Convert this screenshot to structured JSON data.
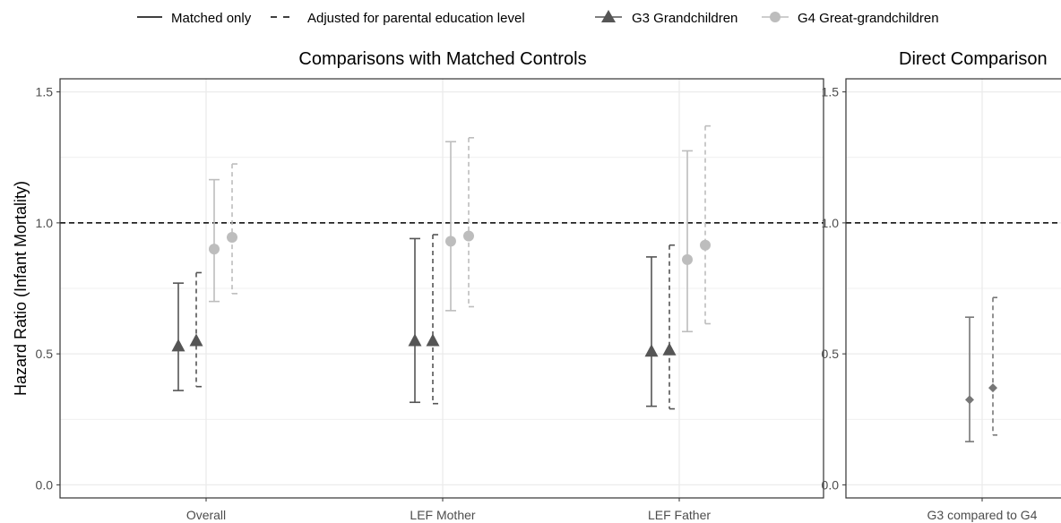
{
  "legend": {
    "linetype": [
      {
        "label": "Matched only",
        "style": "solid"
      },
      {
        "label": "Adjusted for parental education level",
        "style": "dashed"
      }
    ],
    "generation": [
      {
        "label": "G3 Grandchildren",
        "shape": "triangle",
        "color": "#555555"
      },
      {
        "label": "G4 Great-grandchildren",
        "shape": "circle",
        "color": "#bdbdbd"
      }
    ]
  },
  "y_axis_label": "Hazard Ratio (Infant Mortality)",
  "colors": {
    "g3": "#555555",
    "g4": "#bdbdbd",
    "direct": "#777777",
    "reference_line": "#000000",
    "grid": "#ebebeb",
    "panel_border": "#333333"
  },
  "chart_data": [
    {
      "type": "scatter",
      "subtype": "point-range with error bars",
      "title": "Comparisons with Matched Controls",
      "xlabel": "",
      "ylabel": "Hazard Ratio (Infant Mortality)",
      "ylim": [
        -0.05,
        1.55
      ],
      "yticks": [
        "0.0",
        "0.5",
        "1.0",
        "1.5"
      ],
      "reference_line": 1.0,
      "grid": true,
      "categories": [
        "Overall",
        "LEF Mother",
        "LEF Father"
      ],
      "series": [
        {
          "name": "G3 Grandchildren",
          "linetype": "solid",
          "shape": "triangle",
          "values": [
            {
              "est": 0.53,
              "lo": 0.36,
              "hi": 0.77
            },
            {
              "est": 0.55,
              "lo": 0.315,
              "hi": 0.94
            },
            {
              "est": 0.51,
              "lo": 0.3,
              "hi": 0.87
            }
          ]
        },
        {
          "name": "G3 Grandchildren",
          "linetype": "dashed",
          "shape": "triangle",
          "values": [
            {
              "est": 0.55,
              "lo": 0.375,
              "hi": 0.81
            },
            {
              "est": 0.55,
              "lo": 0.31,
              "hi": 0.955
            },
            {
              "est": 0.515,
              "lo": 0.29,
              "hi": 0.915
            }
          ]
        },
        {
          "name": "G4 Great-grandchildren",
          "linetype": "solid",
          "shape": "circle",
          "values": [
            {
              "est": 0.9,
              "lo": 0.7,
              "hi": 1.165
            },
            {
              "est": 0.93,
              "lo": 0.665,
              "hi": 1.31
            },
            {
              "est": 0.86,
              "lo": 0.585,
              "hi": 1.275
            }
          ]
        },
        {
          "name": "G4 Great-grandchildren",
          "linetype": "dashed",
          "shape": "circle",
          "values": [
            {
              "est": 0.945,
              "lo": 0.73,
              "hi": 1.225
            },
            {
              "est": 0.95,
              "lo": 0.68,
              "hi": 1.325
            },
            {
              "est": 0.915,
              "lo": 0.615,
              "hi": 1.37
            }
          ]
        }
      ]
    },
    {
      "type": "scatter",
      "subtype": "point-range with error bars",
      "title": "Direct Comparison",
      "xlabel": "",
      "ylabel": "",
      "ylim": [
        -0.05,
        1.55
      ],
      "yticks": [
        "0.0",
        "0.5",
        "1.0",
        "1.5"
      ],
      "reference_line": 1.0,
      "grid": true,
      "categories": [
        "G3 compared to G4"
      ],
      "series": [
        {
          "linetype": "solid",
          "shape": "diamond",
          "values": [
            {
              "est": 0.325,
              "lo": 0.165,
              "hi": 0.64
            }
          ]
        },
        {
          "linetype": "dashed",
          "shape": "diamond",
          "values": [
            {
              "est": 0.37,
              "lo": 0.19,
              "hi": 0.715
            }
          ]
        }
      ]
    }
  ]
}
